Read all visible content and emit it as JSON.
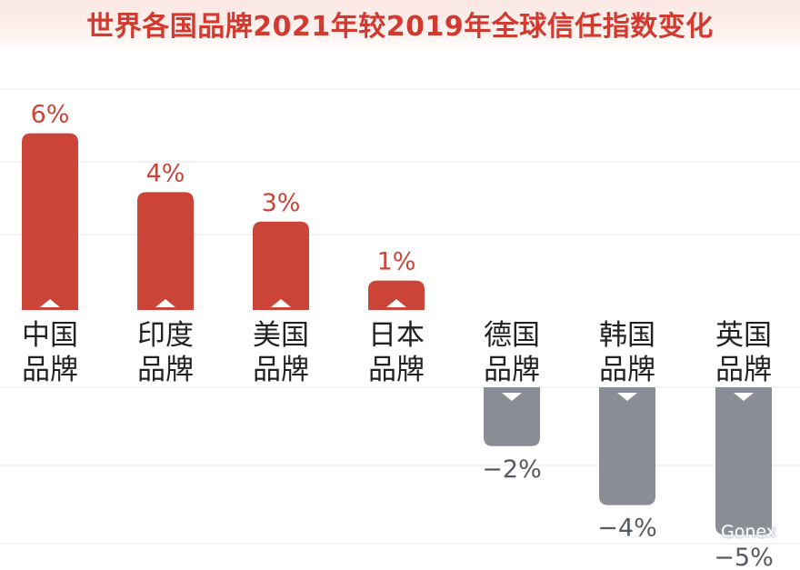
{
  "title": "世界各国品牌2021年较2019年全球信任指数变化",
  "watermark": "Gonex",
  "colors": {
    "positive": "#cc4438",
    "negative": "#8a8d95",
    "title": "#d33a2f",
    "label": "#222222",
    "grid": "#ecedf0"
  },
  "chart_data": {
    "type": "bar",
    "title": "世界各国品牌2021年较2019年全球信任指数变化",
    "categories": [
      [
        "中国",
        "品牌"
      ],
      [
        "印度",
        "品牌"
      ],
      [
        "美国",
        "品牌"
      ],
      [
        "日本",
        "品牌"
      ],
      [
        "德国",
        "品牌"
      ],
      [
        "韩国",
        "品牌"
      ],
      [
        "英国",
        "品牌"
      ]
    ],
    "values": [
      6,
      4,
      3,
      1,
      -2,
      -4,
      -5
    ],
    "value_labels": [
      "6%",
      "4%",
      "3%",
      "1%",
      "−2%",
      "−4%",
      "−5%"
    ],
    "unit": "%",
    "grid": true
  }
}
